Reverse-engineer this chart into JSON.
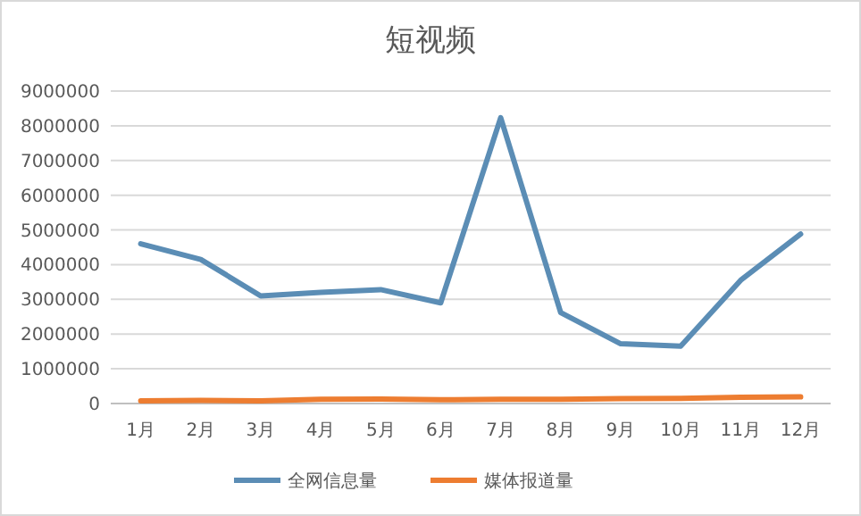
{
  "chart_data": {
    "type": "line",
    "title": "短视频",
    "categories": [
      "1月",
      "2月",
      "3月",
      "4月",
      "5月",
      "6月",
      "7月",
      "8月",
      "9月",
      "10月",
      "11月",
      "12月"
    ],
    "series": [
      {
        "name": "全网信息量",
        "color": "#5b8db5",
        "values": [
          4600000,
          4150000,
          3100000,
          3200000,
          3280000,
          2900000,
          8230000,
          2620000,
          1720000,
          1650000,
          3550000,
          4880000
        ]
      },
      {
        "name": "媒体报道量",
        "color": "#ed7d31",
        "values": [
          80000,
          90000,
          80000,
          120000,
          130000,
          110000,
          120000,
          120000,
          140000,
          150000,
          180000,
          190000
        ]
      }
    ],
    "ylim": [
      0,
      9000000
    ],
    "yticks": [
      0,
      1000000,
      2000000,
      3000000,
      4000000,
      5000000,
      6000000,
      7000000,
      8000000,
      9000000
    ],
    "grid": "y",
    "legend": "bottom",
    "marker": "none",
    "line_style": "solid"
  }
}
